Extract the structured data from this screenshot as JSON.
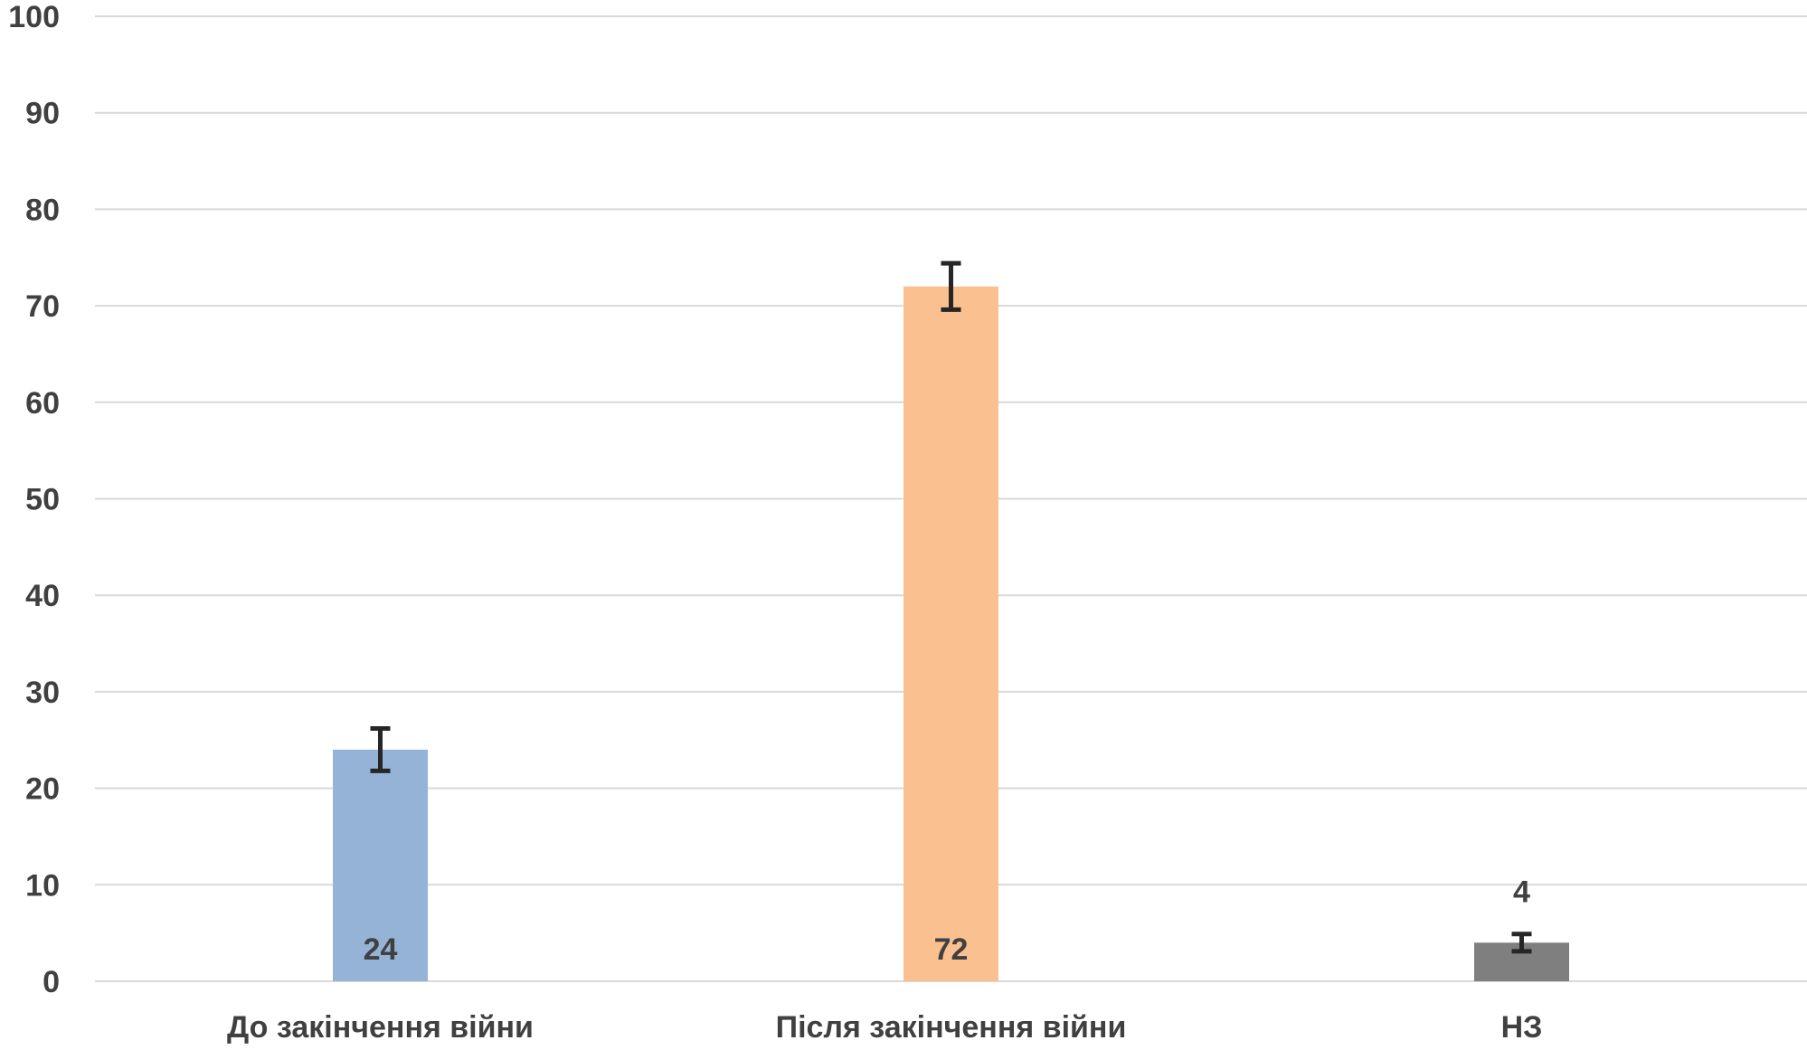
{
  "chart_data": {
    "type": "bar",
    "title": "",
    "xlabel": "",
    "ylabel": "",
    "ylim": [
      0,
      100
    ],
    "yticks": [
      "0",
      "10",
      "20",
      "30",
      "40",
      "50",
      "60",
      "70",
      "80",
      "90",
      "100"
    ],
    "grid": true,
    "legend": "none",
    "categories": [
      "До закінчення війни",
      "Після закінчення війни",
      "НЗ"
    ],
    "values": [
      24,
      72,
      4
    ],
    "data_labels": [
      "24",
      "72",
      "4"
    ],
    "data_label_position": [
      "inside-bottom",
      "inside-bottom",
      "above"
    ],
    "error_bars": [
      [
        21.8,
        26.2
      ],
      [
        69.6,
        74.4
      ],
      [
        3.1,
        4.9
      ]
    ],
    "colors": [
      "#95B3D7",
      "#FAC090",
      "#7F7F7F"
    ]
  }
}
